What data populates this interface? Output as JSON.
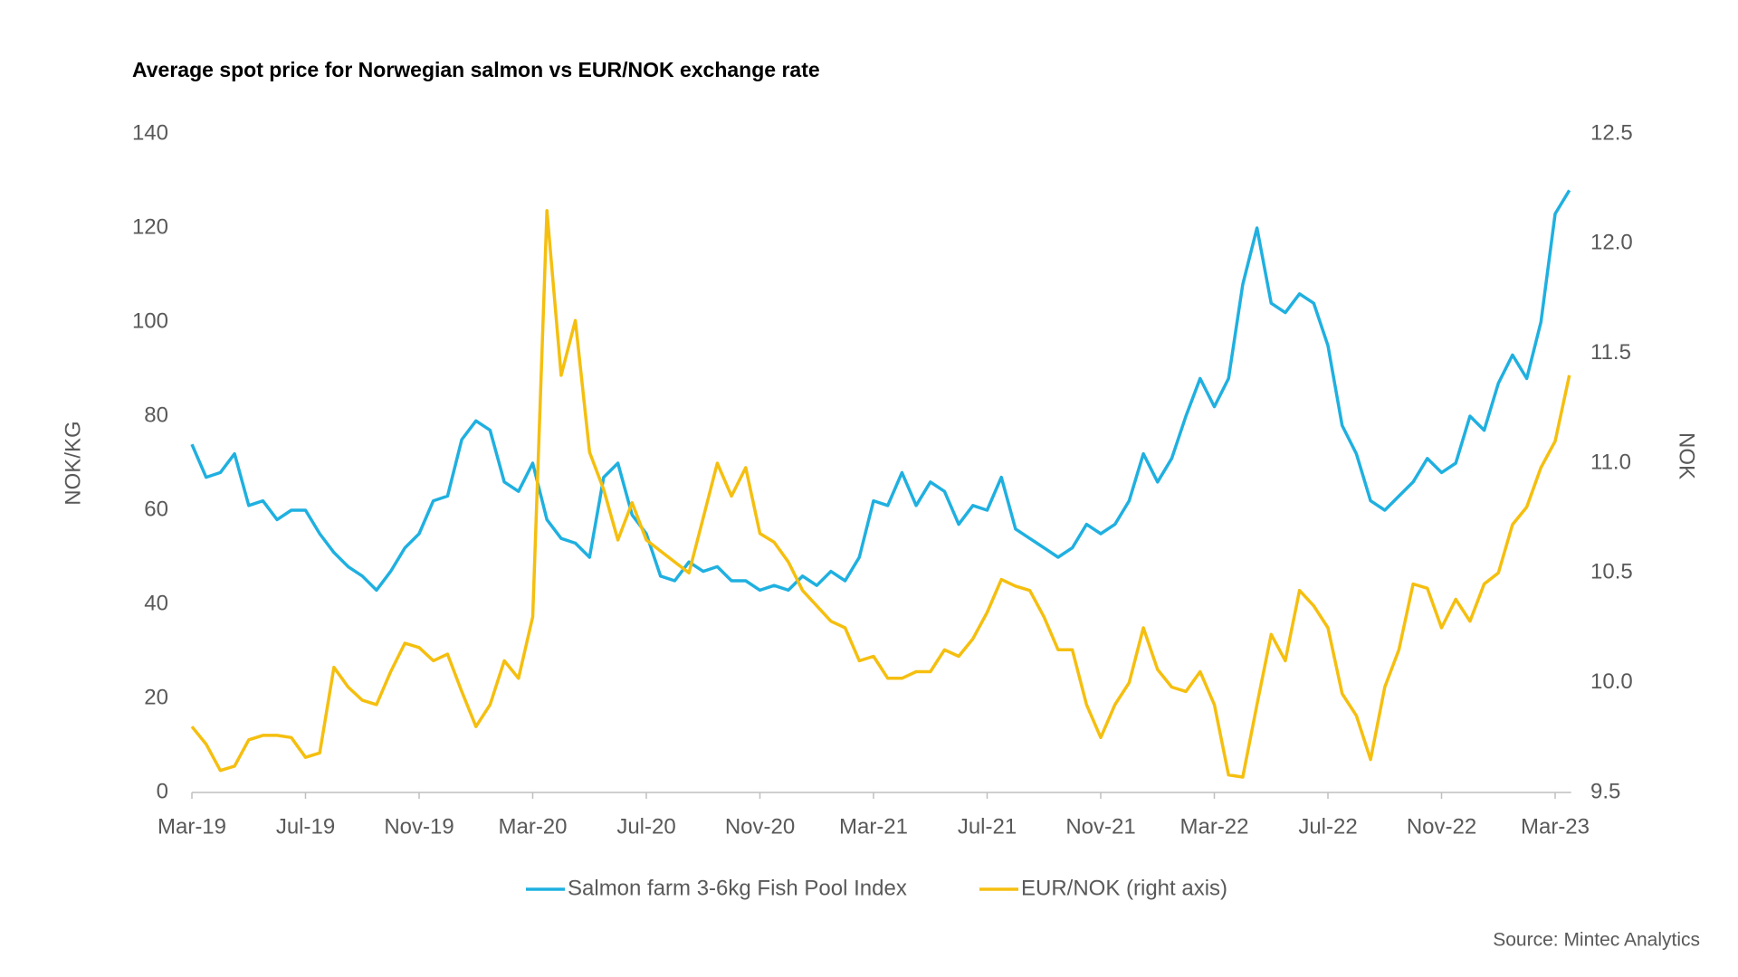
{
  "chart_data": {
    "type": "line",
    "title": "Average spot price for Norwegian salmon vs EUR/NOK exchange rate",
    "ylabel": "NOK/KG",
    "y2label": "NOK",
    "source": "Source: Mintec Analytics",
    "categories": [
      "Mar-19",
      null,
      null,
      null,
      null,
      null,
      null,
      null,
      "Jul-19",
      null,
      null,
      null,
      null,
      null,
      null,
      null,
      "Nov-19",
      null,
      null,
      null,
      null,
      null,
      null,
      null,
      "Mar-20",
      null,
      null,
      null,
      null,
      null,
      null,
      null,
      "Jul-20",
      null,
      null,
      null,
      null,
      null,
      null,
      null,
      "Nov-20",
      null,
      null,
      null,
      null,
      null,
      null,
      null,
      "Mar-21",
      null,
      null,
      null,
      null,
      null,
      null,
      null,
      "Jul-21",
      null,
      null,
      null,
      null,
      null,
      null,
      null,
      "Nov-21",
      null,
      null,
      null,
      null,
      null,
      null,
      null,
      "Mar-22",
      null,
      null,
      null,
      null,
      null,
      null,
      null,
      "Jul-22",
      null,
      null,
      null,
      null,
      null,
      null,
      null,
      "Nov-22",
      null,
      null,
      null,
      null,
      null,
      null,
      null,
      "Mar-23",
      null
    ],
    "ylim": [
      0,
      140
    ],
    "yticks": [
      0,
      20,
      40,
      60,
      80,
      100,
      120,
      140
    ],
    "y2lim": [
      9.5,
      12.5
    ],
    "y2ticks": [
      9.5,
      {
        "value": 10,
        "label": "10.0"
      },
      10.5,
      {
        "value": 11,
        "label": "11.0"
      },
      11.5,
      {
        "value": 12,
        "label": "12.0"
      },
      12.5
    ],
    "grid": false,
    "legend": "bottom",
    "series": [
      {
        "name": "Salmon farm 3-6kg Fish Pool Index",
        "color": "#1fb0e0",
        "axis": "y",
        "values": [
          74,
          67,
          68,
          72,
          61,
          62,
          58,
          60,
          60,
          55,
          51,
          48,
          46,
          43,
          47,
          52,
          55,
          62,
          63,
          75,
          79,
          77,
          66,
          64,
          70,
          58,
          54,
          53,
          50,
          67,
          70,
          59,
          55,
          46,
          45,
          49,
          47,
          48,
          45,
          45,
          43,
          44,
          43,
          46,
          44,
          47,
          45,
          50,
          62,
          61,
          68,
          61,
          66,
          64,
          57,
          61,
          60,
          67,
          56,
          54,
          52,
          50,
          52,
          57,
          55,
          57,
          62,
          72,
          66,
          71,
          80,
          88,
          82,
          88,
          108,
          120,
          104,
          102,
          106,
          104,
          95,
          78,
          72,
          62,
          60,
          63,
          66,
          71,
          68,
          70,
          80,
          77,
          87,
          93,
          88,
          100,
          123,
          128
        ]
      },
      {
        "name": "EUR/NOK (right axis)",
        "color": "#f5bf0f",
        "axis": "y2",
        "values": [
          9.8,
          9.72,
          9.6,
          9.62,
          9.74,
          9.76,
          9.76,
          9.75,
          9.66,
          9.68,
          10.07,
          9.98,
          9.92,
          9.9,
          10.05,
          10.18,
          10.16,
          10.1,
          10.13,
          9.96,
          9.8,
          9.9,
          10.1,
          10.02,
          10.3,
          12.15,
          11.4,
          11.65,
          11.05,
          10.88,
          10.65,
          10.82,
          10.65,
          10.6,
          10.55,
          10.5,
          10.75,
          11,
          10.85,
          10.98,
          10.68,
          10.64,
          10.55,
          10.42,
          10.35,
          10.28,
          10.25,
          10.1,
          10.12,
          10.02,
          10.02,
          10.05,
          10.05,
          10.15,
          10.12,
          10.2,
          10.32,
          10.47,
          10.44,
          10.42,
          10.3,
          10.15,
          10.15,
          9.9,
          9.75,
          9.9,
          10,
          10.25,
          10.06,
          9.98,
          9.96,
          10.05,
          9.9,
          9.58,
          9.57,
          9.9,
          10.22,
          10.1,
          10.42,
          10.35,
          10.25,
          9.95,
          9.85,
          9.65,
          9.98,
          10.15,
          10.45,
          10.43,
          10.25,
          10.38,
          10.28,
          10.45,
          10.5,
          10.72,
          10.8,
          10.98,
          11.1,
          11.4
        ]
      }
    ]
  }
}
